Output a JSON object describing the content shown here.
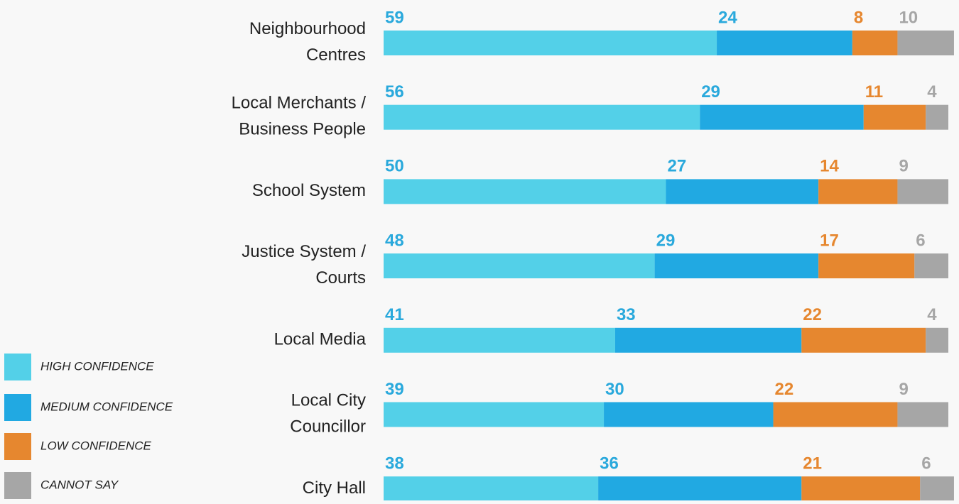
{
  "chart_data": {
    "type": "stacked-bar",
    "categories": [
      "Neighbourhood\nCentres",
      "Local Merchants /\nBusiness People",
      "School System",
      "Justice System /\nCourts",
      "Local Media",
      "Local City\nCouncillor",
      "City Hall"
    ],
    "series": [
      {
        "name": "HIGH CONFIDENCE",
        "color": "#53d0e8",
        "label_color": "#2aa9dc",
        "values": [
          59,
          56,
          50,
          48,
          41,
          39,
          38
        ]
      },
      {
        "name": "MEDIUM CONFIDENCE",
        "color": "#21a9e2",
        "label_color": "#2aa9dc",
        "values": [
          24,
          29,
          27,
          29,
          33,
          30,
          36
        ]
      },
      {
        "name": "LOW CONFIDENCE",
        "color": "#e6872f",
        "label_color": "#e6872f",
        "values": [
          8,
          11,
          14,
          17,
          22,
          22,
          21
        ]
      },
      {
        "name": "CANNOT SAY",
        "color": "#a6a6a6",
        "label_color": "#a6a6a6",
        "values": [
          10,
          4,
          9,
          6,
          4,
          9,
          6
        ]
      }
    ]
  }
}
